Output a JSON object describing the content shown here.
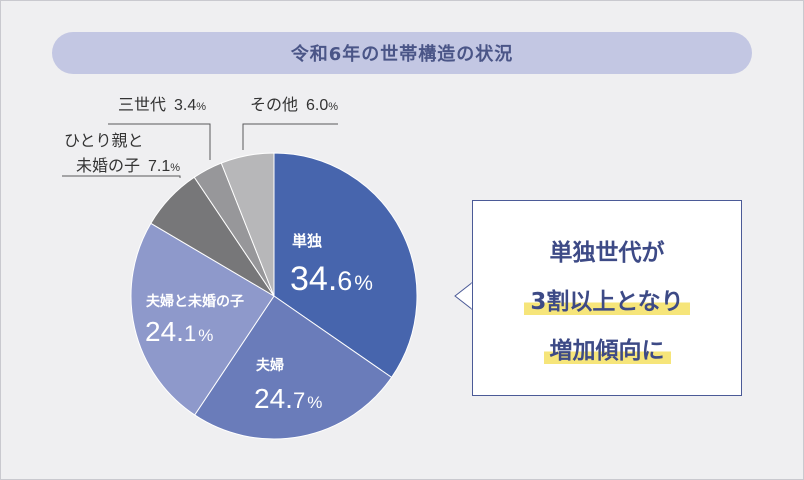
{
  "title": "令和6年の世帯構造の状況",
  "callout": {
    "line1": "単独世代が",
    "line2": "3割以上となり",
    "line3": "増加傾向に"
  },
  "colors": {
    "background": "#efeff1",
    "title_bar": "#c3c7e3",
    "title_text": "#4a5587",
    "callout_text": "#3d4a86",
    "highlight": "#f6e57a"
  },
  "chart_data": {
    "type": "pie",
    "start_angle_deg": 0,
    "direction": "clockwise",
    "slices": [
      {
        "key": "tandoku",
        "label": "単独",
        "value": 34.6,
        "unit": "%",
        "color": "#4765ad",
        "label_style": "inside"
      },
      {
        "key": "fufu",
        "label": "夫婦",
        "value": 24.7,
        "unit": "%",
        "color": "#6a7cba",
        "label_style": "inside"
      },
      {
        "key": "fufu_mikon",
        "label": "夫婦と未婚の子",
        "value": 24.1,
        "unit": "%",
        "color": "#8e99cb",
        "label_style": "inside"
      },
      {
        "key": "hitori_oya",
        "label_lines": [
          "ひとり親と",
          "未婚の子"
        ],
        "value": 7.1,
        "unit": "%",
        "color": "#777779",
        "label_style": "outside"
      },
      {
        "key": "sansedai",
        "label": "三世代",
        "value": 3.4,
        "unit": "%",
        "color": "#97979a",
        "label_style": "outside"
      },
      {
        "key": "sonota",
        "label": "その他",
        "value": 6.0,
        "unit": "%",
        "color": "#b7b7b9",
        "label_style": "outside"
      }
    ]
  }
}
